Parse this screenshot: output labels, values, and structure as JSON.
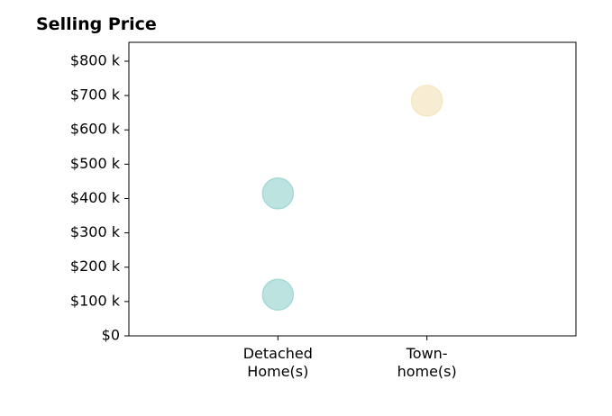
{
  "chart_data": {
    "type": "scatter",
    "title": "Selling Price",
    "xlabel": "",
    "ylabel": "",
    "categories": [
      [
        "Detached",
        "Home(s)"
      ],
      [
        "Town-",
        "home(s)"
      ]
    ],
    "y_ticks": [
      0,
      100,
      200,
      300,
      400,
      500,
      600,
      700,
      800
    ],
    "y_tick_labels": [
      "$0",
      "$100 k",
      "$200 k",
      "$300 k",
      "$400 k",
      "$500 k",
      "$600 k",
      "$700 k",
      "$800 k"
    ],
    "ylim": [
      0,
      855
    ],
    "x_range": [
      -1,
      2
    ],
    "grid": false,
    "series": [
      {
        "category": 0,
        "color": "#a6d9d6",
        "values": [
          120,
          415
        ]
      },
      {
        "category": 1,
        "color": "#f6e6c4",
        "values": [
          685
        ]
      }
    ]
  }
}
